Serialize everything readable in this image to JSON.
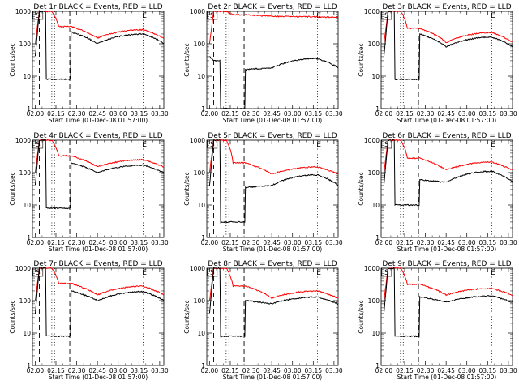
{
  "chart_data": [
    {
      "type": "line",
      "title": "Det 1r BLACK = Events, RED = LLD",
      "xlabel": "Start Time (01-Dec-08 01:57:00)",
      "ylabel": "Counts/sec",
      "yscale": "log",
      "ylim": [
        1,
        1000
      ],
      "xticks": [
        "02:00",
        "02:15",
        "02:30",
        "02:45",
        "03:00",
        "03:15",
        "03:30"
      ],
      "yticks": [
        "1",
        "10",
        "100",
        "1000"
      ],
      "markers": [
        "S",
        "E"
      ],
      "series": [
        {
          "name": "LLD",
          "color": "#ff0000",
          "ramp": 1000,
          "base": 340,
          "valley": 150,
          "peak": 270
        },
        {
          "name": "Events",
          "color": "#000000",
          "ramp": 1000,
          "low": 8,
          "base": 230,
          "valley": 100,
          "peak": 200
        }
      ]
    },
    {
      "type": "line",
      "title": "Det 2r BLACK = Events, RED = LLD",
      "xlabel": "Start Time (01-Dec-08 01:57:00)",
      "ylabel": "Counts/sec",
      "yscale": "log",
      "ylim": [
        1,
        1000
      ],
      "xticks": [
        "02:00",
        "02:15",
        "02:30",
        "02:45",
        "03:00",
        "03:15",
        "03:30"
      ],
      "yticks": [
        "1",
        "10",
        "100",
        "1000"
      ],
      "markers": [
        "S",
        "E"
      ],
      "series": [
        {
          "name": "LLD",
          "color": "#ff0000",
          "ramp": 1000,
          "base": 780,
          "valley": 700,
          "peak": 680
        },
        {
          "name": "Events",
          "color": "#000000",
          "ramp": 30,
          "low": 1,
          "base": 16,
          "valley": 18,
          "peak": 35
        }
      ]
    },
    {
      "type": "line",
      "title": "Det 3r BLACK = Events, RED = LLD",
      "xlabel": "Start Time (01-Dec-08 01:57:00)",
      "ylabel": "Counts/sec",
      "yscale": "log",
      "ylim": [
        1,
        1000
      ],
      "xticks": [
        "02:00",
        "02:15",
        "02:30",
        "02:45",
        "03:00",
        "03:15",
        "03:30"
      ],
      "yticks": [
        "1",
        "10",
        "100",
        "1000"
      ],
      "markers": [
        "S",
        "E"
      ],
      "series": [
        {
          "name": "LLD",
          "color": "#ff0000",
          "ramp": 1000,
          "base": 300,
          "valley": 110,
          "peak": 220
        },
        {
          "name": "Events",
          "color": "#000000",
          "ramp": 1000,
          "low": 8,
          "base": 200,
          "valley": 80,
          "peak": 160
        }
      ]
    },
    {
      "type": "line",
      "title": "Det 4r BLACK = Events, RED = LLD",
      "xlabel": "Start Time (01-Dec-08 01:57:00)",
      "ylabel": "Counts/sec",
      "yscale": "log",
      "ylim": [
        1,
        1000
      ],
      "xticks": [
        "02:00",
        "02:15",
        "02:30",
        "02:45",
        "03:00",
        "03:15",
        "03:30"
      ],
      "yticks": [
        "1",
        "10",
        "100",
        "1000"
      ],
      "markers": [
        "S",
        "E"
      ],
      "series": [
        {
          "name": "LLD",
          "color": "#ff0000",
          "ramp": 1000,
          "base": 330,
          "valley": 150,
          "peak": 250
        },
        {
          "name": "Events",
          "color": "#000000",
          "ramp": 1000,
          "low": 8,
          "base": 200,
          "valley": 100,
          "peak": 170
        }
      ]
    },
    {
      "type": "line",
      "title": "Det 5r BLACK = Events, RED = LLD",
      "xlabel": "Start Time (01-Dec-08 01:57:00)",
      "ylabel": "Counts/sec",
      "yscale": "log",
      "ylim": [
        1,
        1000
      ],
      "xticks": [
        "02:00",
        "02:15",
        "02:30",
        "02:45",
        "03:00",
        "03:15",
        "03:30"
      ],
      "yticks": [
        "1",
        "10",
        "100",
        "1000"
      ],
      "markers": [
        "S",
        "E"
      ],
      "series": [
        {
          "name": "LLD",
          "color": "#ff0000",
          "ramp": 1000,
          "base": 200,
          "valley": 90,
          "peak": 150
        },
        {
          "name": "Events",
          "color": "#000000",
          "ramp": 1000,
          "low": 3,
          "base": 35,
          "valley": 40,
          "peak": 85
        }
      ]
    },
    {
      "type": "line",
      "title": "Det 6r BLACK = Events, RED = LLD",
      "xlabel": "Start Time (01-Dec-08 01:57:00)",
      "ylabel": "Counts/sec",
      "yscale": "log",
      "ylim": [
        1,
        1000
      ],
      "xticks": [
        "02:00",
        "02:15",
        "02:30",
        "02:45",
        "03:00",
        "03:15",
        "03:30"
      ],
      "yticks": [
        "1",
        "10",
        "100",
        "1000"
      ],
      "markers": [
        "S",
        "E"
      ],
      "series": [
        {
          "name": "LLD",
          "color": "#ff0000",
          "ramp": 1000,
          "base": 280,
          "valley": 120,
          "peak": 210
        },
        {
          "name": "Events",
          "color": "#000000",
          "ramp": 1000,
          "low": 10,
          "base": 60,
          "valley": 50,
          "peak": 110
        }
      ]
    },
    {
      "type": "line",
      "title": "Det 7r BLACK = Events, RED = LLD",
      "xlabel": "Start Time (01-Dec-08 01:57:00)",
      "ylabel": "Counts/sec",
      "yscale": "log",
      "ylim": [
        1,
        1000
      ],
      "xticks": [
        "02:00",
        "02:15",
        "02:30",
        "02:45",
        "03:00",
        "03:15",
        "03:30"
      ],
      "yticks": [
        "1",
        "10",
        "100",
        "1000"
      ],
      "markers": [
        "S",
        "E"
      ],
      "series": [
        {
          "name": "LLD",
          "color": "#ff0000",
          "ramp": 1000,
          "base": 340,
          "valley": 150,
          "peak": 280
        },
        {
          "name": "Events",
          "color": "#000000",
          "ramp": 1000,
          "low": 8,
          "base": 200,
          "valley": 100,
          "peak": 190
        }
      ]
    },
    {
      "type": "line",
      "title": "Det 8r BLACK = Events, RED = LLD",
      "xlabel": "Start Time (01-Dec-08 01:57:00)",
      "ylabel": "Counts/sec",
      "yscale": "log",
      "ylim": [
        1,
        1000
      ],
      "xticks": [
        "02:00",
        "02:15",
        "02:30",
        "02:45",
        "03:00",
        "03:15",
        "03:30"
      ],
      "yticks": [
        "1",
        "10",
        "100",
        "1000"
      ],
      "markers": [
        "S",
        "E"
      ],
      "series": [
        {
          "name": "LLD",
          "color": "#ff0000",
          "ramp": 1000,
          "base": 280,
          "valley": 120,
          "peak": 200
        },
        {
          "name": "Events",
          "color": "#000000",
          "ramp": 1000,
          "low": 8,
          "base": 100,
          "valley": 80,
          "peak": 130
        }
      ]
    },
    {
      "type": "line",
      "title": "Det 9r BLACK = Events, RED = LLD",
      "xlabel": "Start Time (01-Dec-08 01:57:00)",
      "ylabel": "Counts/sec",
      "yscale": "log",
      "ylim": [
        1,
        1000
      ],
      "xticks": [
        "02:00",
        "02:15",
        "02:30",
        "02:45",
        "03:00",
        "03:15",
        "03:30"
      ],
      "yticks": [
        "1",
        "10",
        "100",
        "1000"
      ],
      "markers": [
        "S",
        "E"
      ],
      "series": [
        {
          "name": "LLD",
          "color": "#ff0000",
          "ramp": 1000,
          "base": 320,
          "valley": 150,
          "peak": 240
        },
        {
          "name": "Events",
          "color": "#000000",
          "ramp": 1000,
          "low": 8,
          "base": 130,
          "valley": 90,
          "peak": 140
        }
      ]
    }
  ]
}
